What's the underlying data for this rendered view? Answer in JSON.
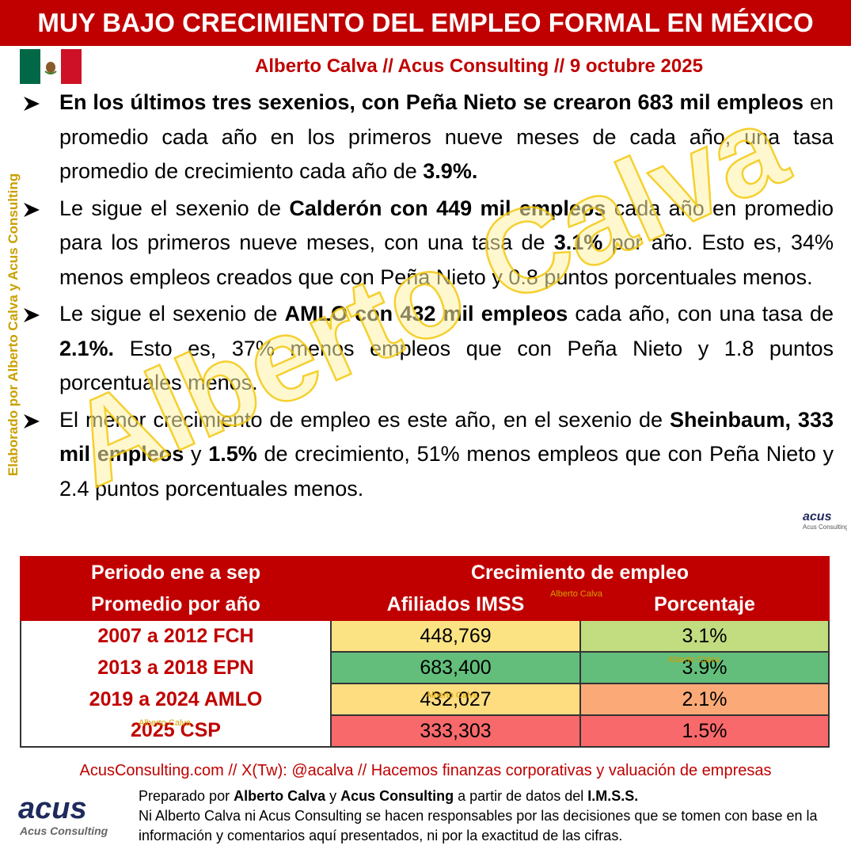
{
  "header": {
    "title": "MUY BAJO CRECIMIENTO DEL EMPLEO FORMAL EN MÉXICO",
    "byline": "Alberto Calva // Acus Consulting // 9 octubre 2025"
  },
  "bullets": [
    [
      {
        "text": "En los últimos tres sexenios, con Peña Nieto se crearon 683 mil empleos",
        "bold": true
      },
      {
        "text": " en promedio cada año en los primeros nueve meses de cada año, una tasa promedio de crecimiento cada año de ",
        "bold": false
      },
      {
        "text": "3.9%.",
        "bold": true
      }
    ],
    [
      {
        "text": "Le sigue el sexenio de ",
        "bold": false
      },
      {
        "text": "Calderón con 449 mil empleos",
        "bold": true
      },
      {
        "text": " cada año en promedio para los primeros nueve meses, con una tasa de ",
        "bold": false
      },
      {
        "text": "3.1%",
        "bold": true
      },
      {
        "text": " por año. Esto es, 34% menos empleos creados que con Peña Nieto y 0.8 puntos porcentuales menos.",
        "bold": false
      }
    ],
    [
      {
        "text": "Le sigue el sexenio de ",
        "bold": false
      },
      {
        "text": "AMLO con 432 mil empleos",
        "bold": true
      },
      {
        "text": " cada año, con una tasa de ",
        "bold": false
      },
      {
        "text": "2.1%.",
        "bold": true
      },
      {
        "text": " Esto es, 37% menos empleos que con Peña Nieto y 1.8 puntos porcentuales menos.",
        "bold": false
      }
    ],
    [
      {
        "text": "El menor crecimiento de empleo es este año, en el sexenio de ",
        "bold": false
      },
      {
        "text": "Sheinbaum, 333 mil empleos",
        "bold": true
      },
      {
        "text": " y ",
        "bold": false
      },
      {
        "text": "1.5%",
        "bold": true
      },
      {
        "text": " de crecimiento, 51% menos empleos que con Peña Nieto y 2.4 puntos porcentuales menos.",
        "bold": false
      }
    ]
  ],
  "table": {
    "header": {
      "period": [
        "Periodo ene a sep",
        "Promedio por año"
      ],
      "growth": "Crecimiento de empleo",
      "columns": [
        "Afiliados IMSS",
        "Porcentaje"
      ]
    },
    "rows": [
      {
        "period": "2007 a 2012 FCH",
        "affiliates": "448,769",
        "percent": "3.1%",
        "colors": [
          "#fbe383",
          "#c2dc80"
        ]
      },
      {
        "period": "2013 a 2018 EPN",
        "affiliates": "683,400",
        "percent": "3.9%",
        "colors": [
          "#63be7b",
          "#63be7b"
        ]
      },
      {
        "period": "2019 a 2024 AMLO",
        "affiliates": "432,027",
        "percent": "2.1%",
        "colors": [
          "#fedd81",
          "#fbaa77"
        ]
      },
      {
        "period": "2025 CSP",
        "affiliates": "333,303",
        "percent": "1.5%",
        "colors": [
          "#f8696b",
          "#f8696b"
        ]
      }
    ]
  },
  "footer": {
    "links": "AcusConsulting.com // X(Tw): @acalva // Hacemos finanzas corporativas y valuación de empresas",
    "credits": [
      {
        "text": "Preparado por ",
        "bold": false
      },
      {
        "text": "Alberto Calva",
        "bold": true
      },
      {
        "text": " y ",
        "bold": false
      },
      {
        "text": "Acus Consulting",
        "bold": true
      },
      {
        "text": " a partir de datos del ",
        "bold": false
      },
      {
        "text": "I.M.S.S.",
        "bold": true
      }
    ],
    "disclaimer": "Ni Alberto Calva ni Acus Consulting se hacen responsables por las decisiones que se tomen con base en la información y comentarios aquí presentados, ni por la exactitud de las cifras."
  },
  "logo": {
    "name": "acus",
    "tagline": "Acus Consulting"
  },
  "watermarks": {
    "main": "Alberto Calva",
    "side": "Elaborado por Alberto Calva y Acus Consulting",
    "small": "Alberto Calva"
  }
}
